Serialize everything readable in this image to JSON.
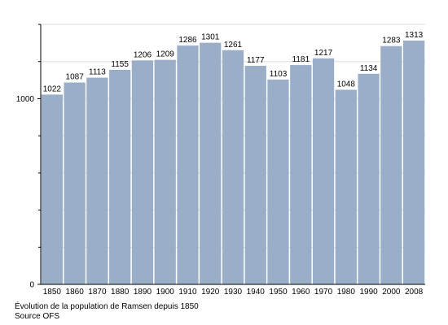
{
  "chart_data": {
    "type": "bar",
    "categories": [
      "1850",
      "1860",
      "1870",
      "1880",
      "1890",
      "1900",
      "1910",
      "1920",
      "1930",
      "1940",
      "1950",
      "1960",
      "1970",
      "1980",
      "1990",
      "2000",
      "2008"
    ],
    "values": [
      1022,
      1087,
      1113,
      1155,
      1206,
      1209,
      1286,
      1301,
      1261,
      1177,
      1103,
      1181,
      1217,
      1048,
      1134,
      1283,
      1313
    ],
    "y_tick_labels": [
      "0",
      "1000"
    ],
    "ylim": [
      0,
      1400
    ],
    "grid": true,
    "bar_color": "#9aafc7",
    "grid_color": "#dddddd",
    "legend": "none"
  },
  "caption": {
    "line1": "Évolution de la population de Ramsen depuis 1850",
    "line2": "Source OFS"
  }
}
